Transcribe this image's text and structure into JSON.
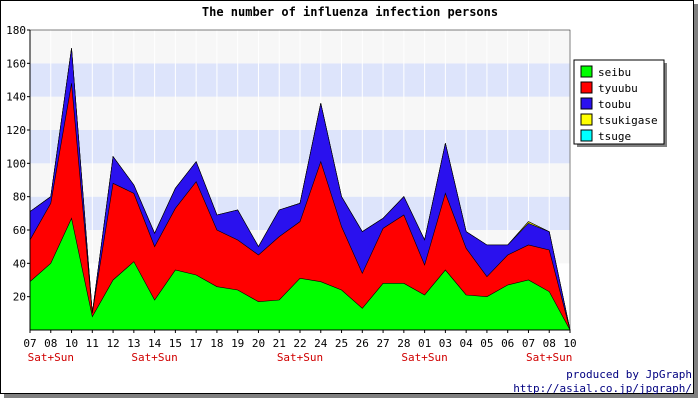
{
  "chart_data": {
    "type": "area",
    "stacked": true,
    "title": "The number of influenza infection persons",
    "ylim": [
      0,
      180
    ],
    "yticks": [
      20,
      40,
      60,
      80,
      100,
      120,
      140,
      160,
      180
    ],
    "categories": [
      "07",
      "08",
      "10",
      "11",
      "12",
      "13",
      "14",
      "15",
      "17",
      "18",
      "19",
      "20",
      "21",
      "22",
      "24",
      "25",
      "26",
      "27",
      "28",
      "01",
      "03",
      "04",
      "05",
      "06",
      "07",
      "08",
      "10"
    ],
    "weekend_label": "Sat+Sun",
    "weekend_indices": [
      1,
      6,
      13,
      19,
      25
    ],
    "series": [
      {
        "name": "seibu",
        "color": "#00ff00",
        "values": [
          29,
          40,
          67,
          8,
          30,
          41,
          18,
          36,
          33,
          26,
          24,
          17,
          18,
          31,
          29,
          24,
          13,
          28,
          28,
          21,
          36,
          21,
          20,
          27,
          30,
          23,
          0
        ]
      },
      {
        "name": "tyuubu",
        "color": "#ff0000",
        "values": [
          25,
          36,
          81,
          2,
          58,
          41,
          32,
          37,
          56,
          34,
          30,
          28,
          38,
          34,
          72,
          38,
          21,
          33,
          41,
          18,
          46,
          28,
          12,
          18,
          21,
          25,
          0
        ]
      },
      {
        "name": "toubu",
        "color": "#2a11ee",
        "values": [
          17,
          4,
          21,
          0,
          16,
          5,
          8,
          12,
          12,
          9,
          18,
          5,
          16,
          11,
          35,
          18,
          25,
          6,
          11,
          15,
          30,
          10,
          19,
          6,
          13,
          11,
          0
        ]
      },
      {
        "name": "tsukigase",
        "color": "#ffff00",
        "values": [
          0,
          0,
          0,
          0,
          0,
          0,
          0,
          0,
          0,
          0,
          0,
          0,
          0,
          0,
          0,
          0,
          0,
          0,
          0,
          0,
          0,
          0,
          0,
          0,
          1,
          0,
          0
        ]
      },
      {
        "name": "tsuge",
        "color": "#00ffff",
        "values": [
          0,
          0,
          0,
          0,
          0,
          0,
          0,
          0,
          0,
          0,
          0,
          0,
          0,
          0,
          0,
          0,
          0,
          0,
          0,
          0,
          0,
          0,
          0,
          0,
          0,
          0,
          0
        ]
      }
    ],
    "band_colors": [
      "#ffffff",
      "#dde4fb"
    ],
    "legend_position": "right"
  },
  "footer": {
    "line1": "produced by JpGraph",
    "line2": "http://asial.co.jp/jpgraph/"
  }
}
